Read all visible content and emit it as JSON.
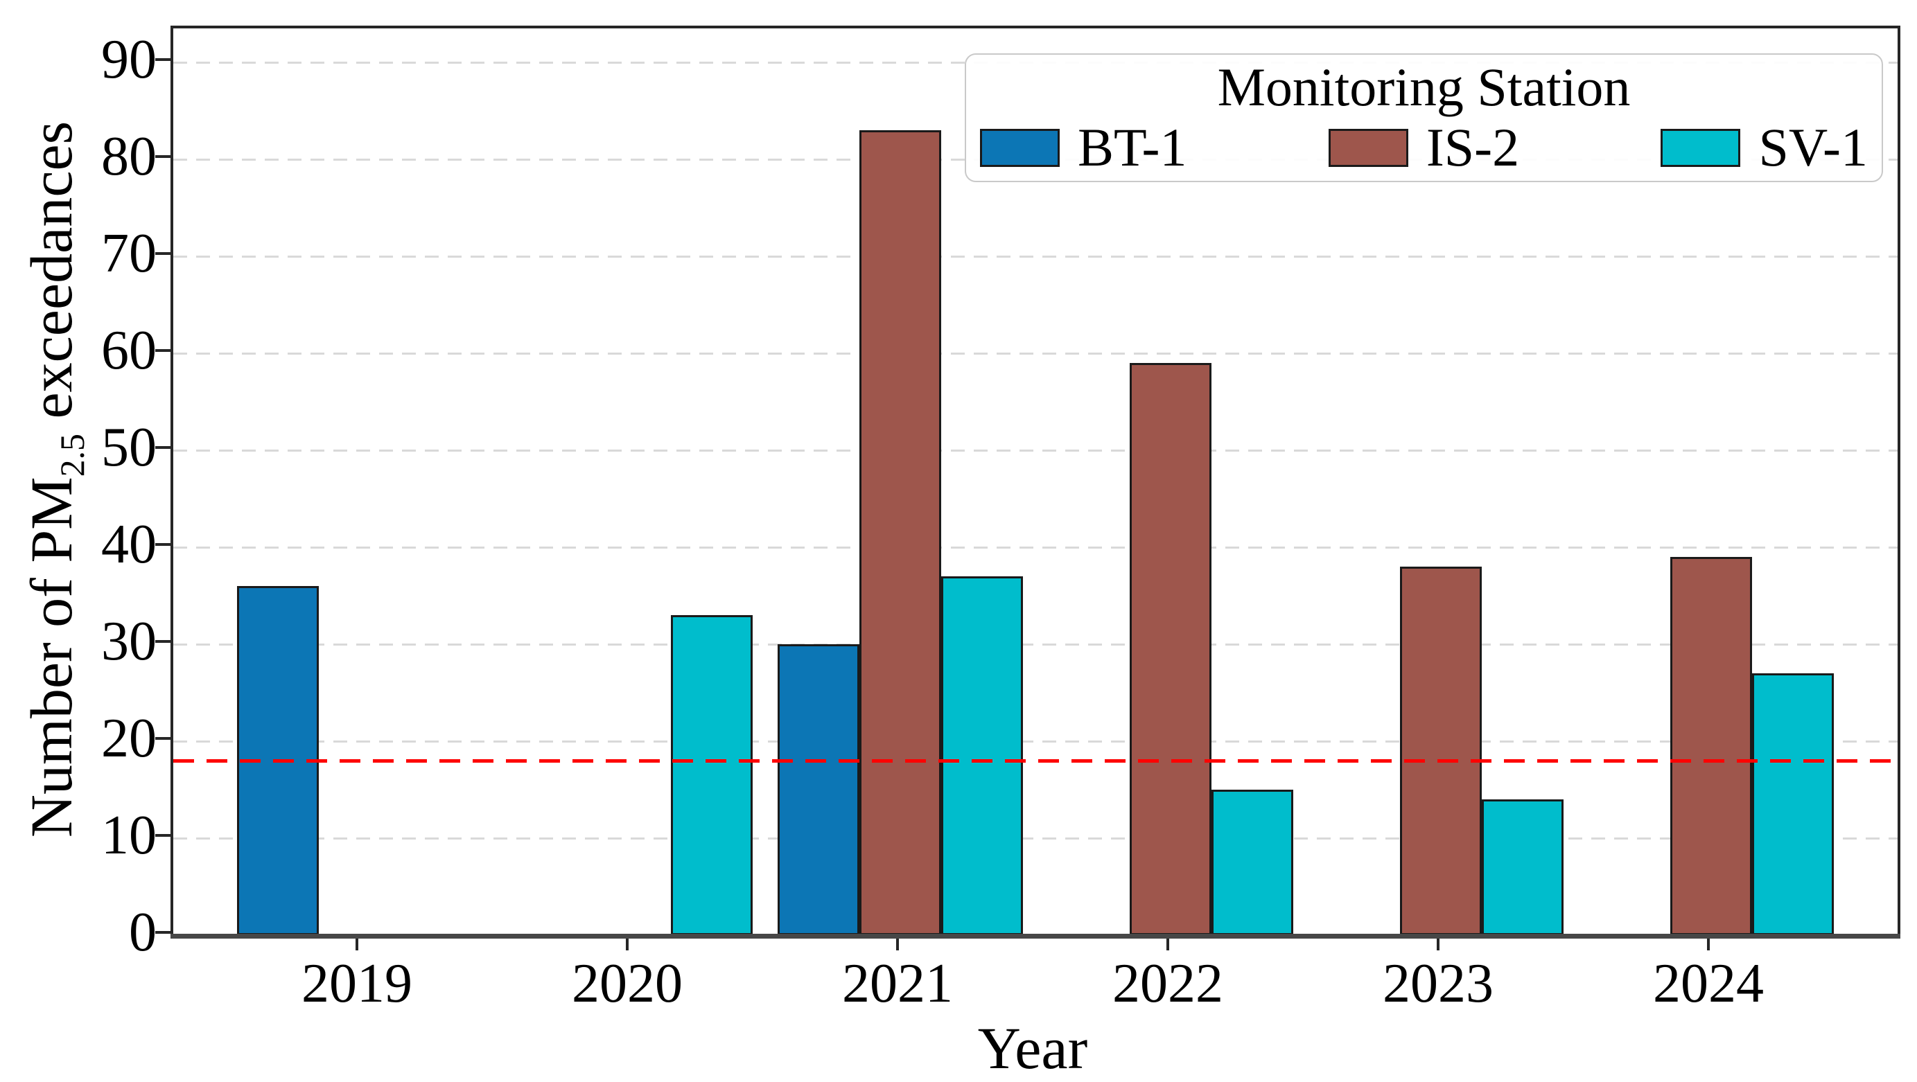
{
  "figure": {
    "xlabel": "Year",
    "ylabel_prefix": "Number of PM",
    "ylabel_sub": "2.5",
    "ylabel_suffix": " exceedances"
  },
  "legend": {
    "title": "Monitoring Station"
  },
  "chart_data": {
    "type": "bar",
    "title": "",
    "xlabel": "Year",
    "ylabel": "Number of PM2.5 exceedances",
    "categories": [
      "2019",
      "2020",
      "2021",
      "2022",
      "2023",
      "2024"
    ],
    "series": [
      {
        "name": "BT-1",
        "color": "#0c76b5",
        "values": [
          36,
          0,
          30,
          0,
          0,
          0
        ]
      },
      {
        "name": "IS-2",
        "color": "#9e564c",
        "values": [
          0,
          0,
          83,
          59,
          38,
          39
        ]
      },
      {
        "name": "SV-1",
        "color": "#00bdcc",
        "values": [
          0,
          33,
          37,
          15,
          14,
          27
        ]
      }
    ],
    "yticks": [
      0,
      10,
      20,
      30,
      40,
      50,
      60,
      70,
      80,
      90
    ],
    "ylim": [
      0,
      93.5
    ],
    "grid": "horizontal-dashed",
    "gridline_color": "#d9d9d9",
    "reference_line": {
      "value": 18,
      "color": "#fe0000",
      "style": "dashed"
    },
    "bar_edge_color": "#1a1a1a",
    "legend_title": "Monitoring Station",
    "legend_position": "upper right"
  }
}
